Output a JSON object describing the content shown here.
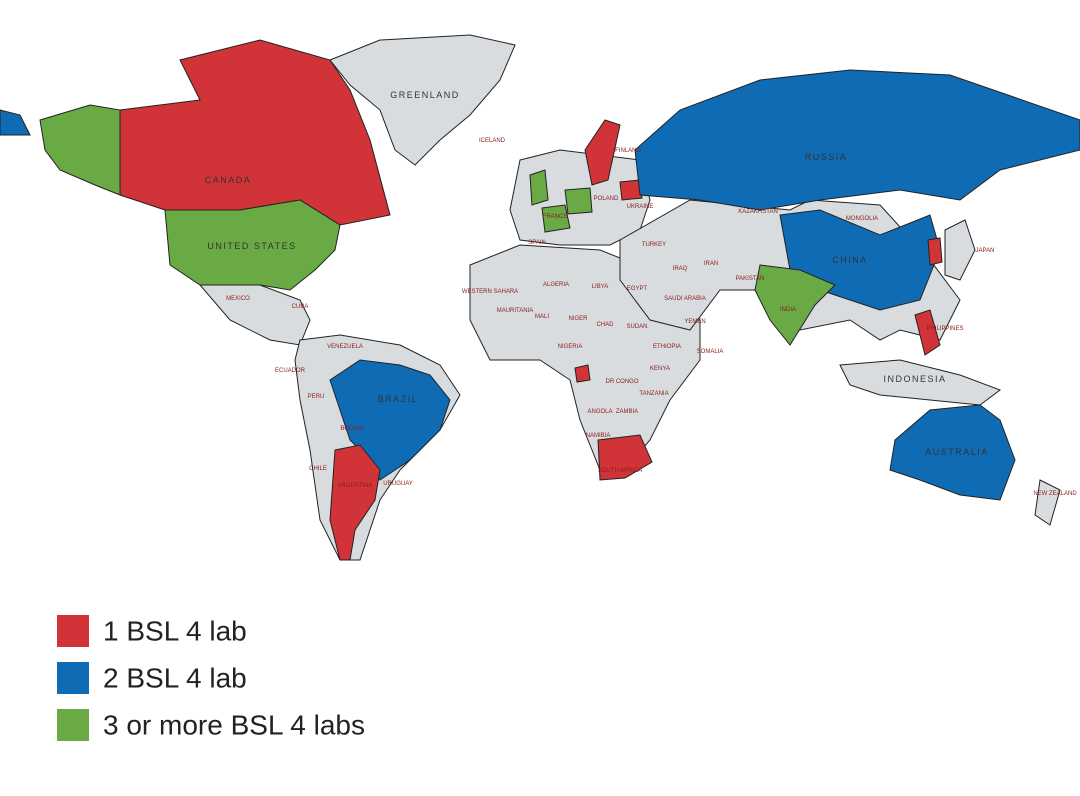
{
  "map": {
    "labels": [
      "CANADA",
      "GREENLAND",
      "ICELAND",
      "UNITED STATES",
      "MEXICO",
      "CUBA",
      "VENEZUELA",
      "ECUADOR",
      "PERU",
      "BRAZIL",
      "BOLIVIA",
      "CHILE",
      "ARGENTINA",
      "URUGUAY",
      "FINLAND",
      "SPAIN",
      "FRANCE",
      "POLAND",
      "UKRAINE",
      "TURKEY",
      "RUSSIA",
      "KAZAKHSTAN",
      "MONGOLIA",
      "CHINA",
      "JAPAN",
      "IRAN",
      "IRAQ",
      "PAKISTAN",
      "INDIA",
      "SAUDI ARABIA",
      "YEMEN",
      "WESTERN SAHARA",
      "MAURITANIA",
      "ALGERIA",
      "LIBYA",
      "EGYPT",
      "MALI",
      "NIGER",
      "CHAD",
      "SUDAN",
      "NIGERIA",
      "ETHIOPIA",
      "SOMALIA",
      "KENYA",
      "DR CONGO",
      "TANZANIA",
      "ANGOLA",
      "ZAMBIA",
      "NAMIBIA",
      "SOUTH AFRICA",
      "PHILIPPINES",
      "INDONESIA",
      "AUSTRALIA",
      "NEW ZEALAND"
    ]
  },
  "legend": [
    {
      "label": "1 BSL 4 lab",
      "color": "#d13438"
    },
    {
      "label": "2 BSL 4 lab",
      "color": "#0f6cb4"
    },
    {
      "label": "3 or more BSL 4 labs",
      "color": "#6aaa44"
    }
  ]
}
